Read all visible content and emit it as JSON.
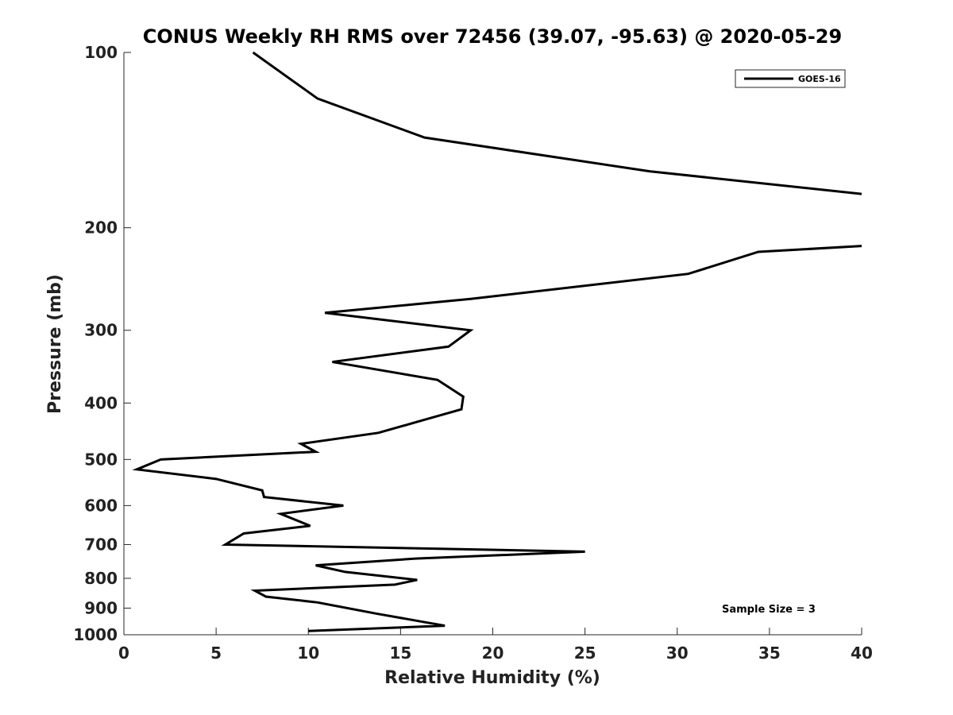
{
  "chart_data": {
    "type": "line",
    "title": "CONUS Weekly RH RMS over 72456 (39.07, -95.63) @ 2020-05-29",
    "xlabel": "Relative Humidity (%)",
    "ylabel": "Pressure (mb)",
    "xlim": [
      0,
      40
    ],
    "ylim": [
      1000,
      100
    ],
    "y_scale": "log",
    "y_reversed": true,
    "grid": false,
    "legend": {
      "placement": "top-right",
      "entries": [
        "GOES-16"
      ]
    },
    "x_ticks": [
      0,
      5,
      10,
      15,
      20,
      25,
      30,
      35,
      40
    ],
    "x_tick_labels": [
      "0",
      "5",
      "10",
      "15",
      "20",
      "25",
      "30",
      "35",
      "40"
    ],
    "y_ticks": [
      100,
      200,
      300,
      400,
      500,
      600,
      700,
      800,
      900,
      1000
    ],
    "y_tick_labels": [
      "100",
      "200",
      "300",
      "400",
      "500",
      "600",
      "700",
      "800",
      "900",
      "1000"
    ],
    "annotation": "Sample Size = 3",
    "series": [
      {
        "name": "GOES-16",
        "color": "#000000",
        "points": [
          {
            "x": 7.0,
            "y": 100
          },
          {
            "x": 10.5,
            "y": 120
          },
          {
            "x": 16.3,
            "y": 140
          },
          {
            "x": 28.5,
            "y": 160
          },
          {
            "x": 40.0,
            "y": 175
          },
          {
            "x": null,
            "y": 190
          },
          {
            "x": 40.0,
            "y": 215
          },
          {
            "x": 34.4,
            "y": 220
          },
          {
            "x": 30.6,
            "y": 240
          },
          {
            "x": 18.8,
            "y": 265
          },
          {
            "x": 10.9,
            "y": 280
          },
          {
            "x": 18.8,
            "y": 300
          },
          {
            "x": 17.6,
            "y": 320
          },
          {
            "x": 11.3,
            "y": 340
          },
          {
            "x": 17.0,
            "y": 365
          },
          {
            "x": 18.4,
            "y": 390
          },
          {
            "x": 18.3,
            "y": 410
          },
          {
            "x": 16.0,
            "y": 430
          },
          {
            "x": 13.8,
            "y": 450
          },
          {
            "x": 9.6,
            "y": 470
          },
          {
            "x": 10.4,
            "y": 485
          },
          {
            "x": 2.0,
            "y": 500
          },
          {
            "x": 0.7,
            "y": 520
          },
          {
            "x": 5.0,
            "y": 540
          },
          {
            "x": 7.5,
            "y": 565
          },
          {
            "x": 7.6,
            "y": 580
          },
          {
            "x": 11.9,
            "y": 600
          },
          {
            "x": 8.5,
            "y": 620
          },
          {
            "x": 10.1,
            "y": 650
          },
          {
            "x": 6.5,
            "y": 670
          },
          {
            "x": 5.5,
            "y": 700
          },
          {
            "x": 25.0,
            "y": 720
          },
          {
            "x": 15.8,
            "y": 740
          },
          {
            "x": 10.4,
            "y": 760
          },
          {
            "x": 12.0,
            "y": 780
          },
          {
            "x": 15.9,
            "y": 805
          },
          {
            "x": 14.7,
            "y": 820
          },
          {
            "x": 7.1,
            "y": 840
          },
          {
            "x": 7.7,
            "y": 860
          },
          {
            "x": 10.5,
            "y": 880
          },
          {
            "x": 13.7,
            "y": 920
          },
          {
            "x": 16.2,
            "y": 950
          },
          {
            "x": 17.4,
            "y": 965
          },
          {
            "x": 10.0,
            "y": 985
          }
        ]
      }
    ]
  }
}
